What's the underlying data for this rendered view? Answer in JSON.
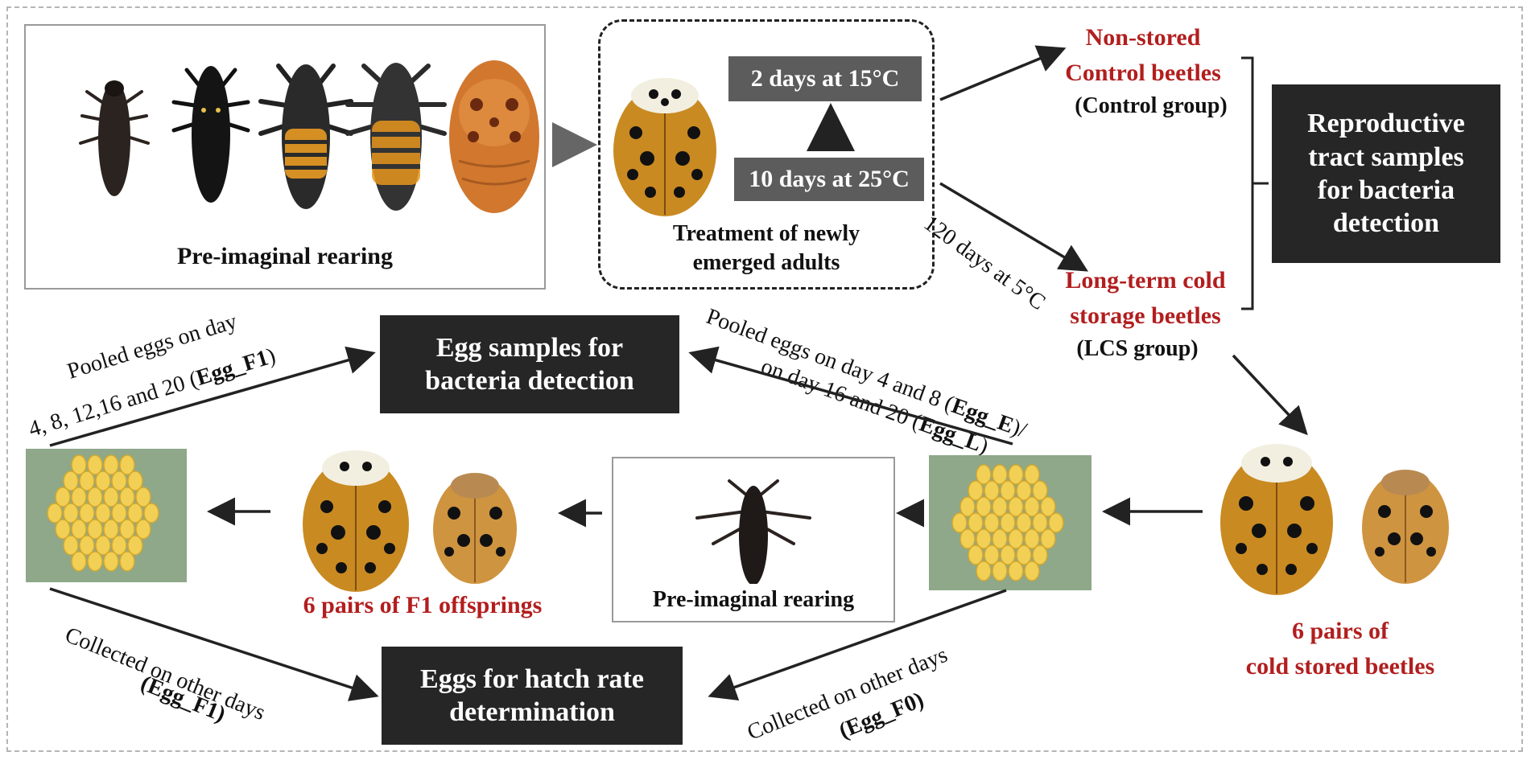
{
  "labels": {
    "pre_imaginal_rearing_top": "Pre-imaginal  rearing",
    "treatment_line1": "Treatment  of newly",
    "treatment_line2": "emerged adults",
    "two_days": "2 days at 15°C",
    "ten_days": "10 days at 25°C",
    "non_stored_line1": "Non-stored",
    "non_stored_line2": "Control  beetles",
    "control_group": "(Control group)",
    "long_term_line1": "Long-term  cold",
    "long_term_line2": "storage beetles",
    "lcs_group": "(LCS group)",
    "cold_storage_duration": "120 days at 5°C",
    "repro_line1": "Reproductive",
    "repro_line2": "tract samples",
    "repro_line3": "for bacteria",
    "repro_line4": "detection",
    "egg_samples_line1": "Egg samples for",
    "egg_samples_line2": "bacteria detection",
    "pooled_f1_line1": "Pooled eggs  on day",
    "pooled_f1_line2_prefix": "4, 8, 12,16 and 20 (",
    "pooled_f1_code": "Egg_F1",
    "pooled_f1_suffix": ")",
    "pooled_e_line1_prefix": "Pooled eggs  on day 4 and 8 (",
    "pooled_e_code": "Egg_E",
    "pooled_e_suffix": ")/",
    "pooled_l_line2_prefix": "on day 16 and 20 (",
    "pooled_l_code": "Egg_L",
    "pooled_l_suffix": ")",
    "six_pairs_f1": "6 pairs  of F1 offsprings",
    "pre_imaginal_rearing_bottom": "Pre-imaginal  rearing",
    "six_pairs_cold_line1": "6 pairs  of",
    "six_pairs_cold_line2": "cold stored beetles",
    "hatch_line1": "Eggs for hatch rate",
    "hatch_line2": "determination",
    "collected_f1_line1": "Collected  on other days",
    "collected_f1_code": "(Egg_F1)",
    "collected_f0_line1": "Collected  on other days",
    "collected_f0_code": "(Egg_F0)"
  },
  "colors": {
    "dark_box": "#262626",
    "gray_box": "#5c5c5c",
    "red_text": "#b21e1e",
    "beetle_body": "#c98a22",
    "beetle_spots": "#1a1a1a",
    "egg": "#f2cf55",
    "leaf": "#8ea889",
    "larva": "#1f1a18",
    "pupa": "#d1772e"
  },
  "icons": [
    "ladybird-larva-icon",
    "ladybird-pupa-icon",
    "ladybird-adult-icon",
    "egg-cluster-icon",
    "arrow-icon",
    "bracket-icon"
  ]
}
